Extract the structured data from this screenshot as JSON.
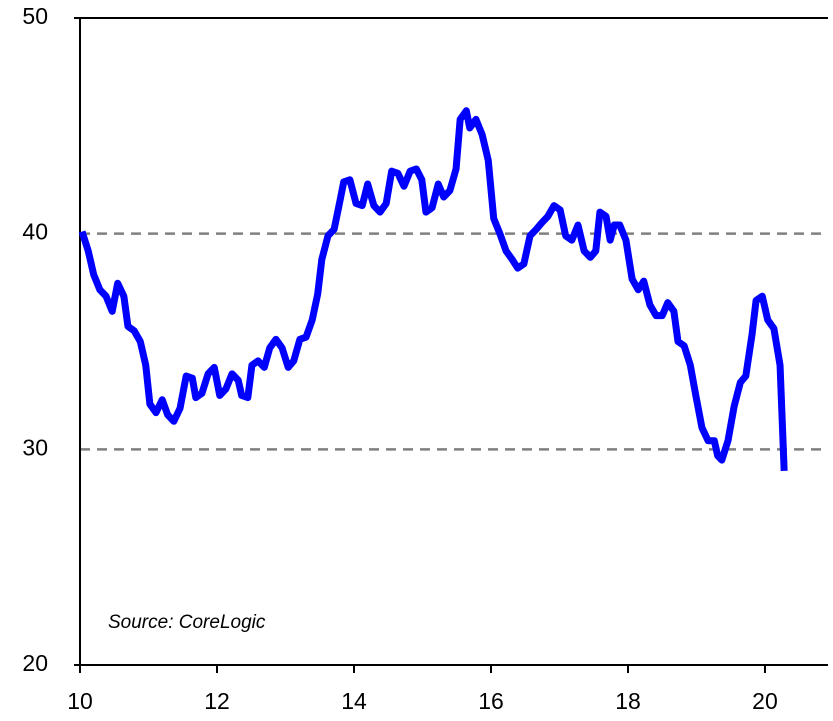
{
  "chart_data": {
    "type": "line",
    "annotation": "Source: CoreLogic",
    "x": [
      10.03,
      10.12,
      10.2,
      10.29,
      10.38,
      10.47,
      10.55,
      10.64,
      10.7,
      10.79,
      10.88,
      10.96,
      11.02,
      11.11,
      11.2,
      11.28,
      11.37,
      11.46,
      11.55,
      11.64,
      11.69,
      11.78,
      11.87,
      11.96,
      12.04,
      12.13,
      12.22,
      12.31,
      12.36,
      12.45,
      12.51,
      12.6,
      12.69,
      12.77,
      12.86,
      12.95,
      13.04,
      13.12,
      13.21,
      13.3,
      13.39,
      13.47,
      13.53,
      13.62,
      13.71,
      13.8,
      13.85,
      13.94,
      14.03,
      14.12,
      14.2,
      14.29,
      14.38,
      14.47,
      14.55,
      14.64,
      14.73,
      14.82,
      14.91,
      14.99,
      15.05,
      15.14,
      15.23,
      15.31,
      15.4,
      15.49,
      15.55,
      15.64,
      15.69,
      15.78,
      15.87,
      15.96,
      16.04,
      16.13,
      16.22,
      16.31,
      16.39,
      16.48,
      16.57,
      16.66,
      16.74,
      16.83,
      16.92,
      17.01,
      17.09,
      17.18,
      17.27,
      17.36,
      17.45,
      17.53,
      17.59,
      17.68,
      17.74,
      17.8,
      17.88,
      17.97,
      18.06,
      18.15,
      18.23,
      18.32,
      18.41,
      18.5,
      18.58,
      18.67,
      18.73,
      18.82,
      18.91,
      18.99,
      19.08,
      19.17,
      19.26,
      19.31,
      19.37,
      19.46,
      19.55,
      19.64,
      19.72,
      19.81,
      19.87,
      19.96,
      20.04,
      20.13,
      20.22,
      20.28
    ],
    "series": [
      {
        "color": "#0000ff",
        "values": [
          40.1,
          39.2,
          38.1,
          37.4,
          37.1,
          36.4,
          37.7,
          37.1,
          35.7,
          35.5,
          35.0,
          33.9,
          32.1,
          31.7,
          32.3,
          31.6,
          31.3,
          31.9,
          33.4,
          33.3,
          32.4,
          32.6,
          33.5,
          33.8,
          32.5,
          32.8,
          33.5,
          33.2,
          32.5,
          32.4,
          33.9,
          34.1,
          33.8,
          34.7,
          35.1,
          34.7,
          33.8,
          34.1,
          35.1,
          35.2,
          36.0,
          37.2,
          38.8,
          39.9,
          40.2,
          41.6,
          42.4,
          42.5,
          41.4,
          41.3,
          42.3,
          41.3,
          41.0,
          41.4,
          42.9,
          42.8,
          42.2,
          42.9,
          43.0,
          42.5,
          41.0,
          41.2,
          42.3,
          41.7,
          42.0,
          43.0,
          45.3,
          45.7,
          44.9,
          45.3,
          44.6,
          43.4,
          40.7,
          40.0,
          39.2,
          38.8,
          38.4,
          38.6,
          39.9,
          40.2,
          40.5,
          40.8,
          41.3,
          41.1,
          39.9,
          39.7,
          40.4,
          39.2,
          38.9,
          39.2,
          41.0,
          40.8,
          39.7,
          40.4,
          40.4,
          39.7,
          37.9,
          37.4,
          37.8,
          36.7,
          36.2,
          36.2,
          36.8,
          36.4,
          35.0,
          34.8,
          33.9,
          32.5,
          31.0,
          30.4,
          30.4,
          29.7,
          29.5,
          30.4,
          32.0,
          33.1,
          33.4,
          35.3,
          36.9,
          37.1,
          36.0,
          35.6,
          33.9,
          29.0
        ]
      }
    ],
    "xlim": [
      10,
      20.92
    ],
    "xticks": [
      10,
      12,
      14,
      16,
      18,
      20
    ],
    "ylim": [
      20,
      50
    ],
    "yticks": [
      20,
      30,
      40,
      50
    ],
    "grid": true
  }
}
